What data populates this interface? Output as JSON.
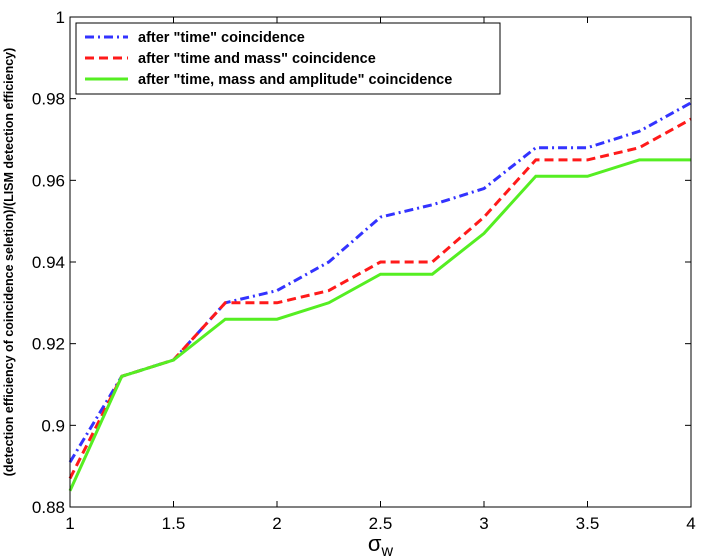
{
  "chart_data": {
    "type": "line",
    "title": "",
    "xlabel": "σ",
    "xlabel_subscript": "w",
    "ylabel": "(detection efficiency of coincidence seletion)/(LISM detection efficiency)",
    "xlim": [
      1,
      4
    ],
    "ylim": [
      0.88,
      1.0
    ],
    "xticks": [
      1,
      1.5,
      2,
      2.5,
      3,
      3.5,
      4
    ],
    "xtick_labels": [
      "1",
      "1.5",
      "2",
      "2.5",
      "3",
      "3.5",
      "4"
    ],
    "yticks": [
      0.88,
      0.9,
      0.92,
      0.94,
      0.96,
      0.98,
      1.0
    ],
    "ytick_labels": [
      "0.88",
      "0.9",
      "0.92",
      "0.94",
      "0.96",
      "0.98",
      "1"
    ],
    "grid": false,
    "legend_position": "top-left",
    "x": [
      1,
      1.25,
      1.5,
      1.75,
      2,
      2.25,
      2.5,
      2.75,
      3,
      3.25,
      3.5,
      3.75,
      4
    ],
    "series": [
      {
        "name": "after \"time\" coincidence",
        "color": "#3333ff",
        "dash": "dash-dot",
        "values": [
          0.891,
          0.912,
          0.916,
          0.93,
          0.933,
          0.94,
          0.951,
          0.954,
          0.958,
          0.968,
          0.968,
          0.972,
          0.979
        ]
      },
      {
        "name": "after \"time and mass\" coincidence",
        "color": "#ff1a1a",
        "dash": "dashed",
        "values": [
          0.887,
          0.912,
          0.916,
          0.93,
          0.93,
          0.933,
          0.94,
          0.94,
          0.951,
          0.965,
          0.965,
          0.968,
          0.975
        ]
      },
      {
        "name": "after \"time, mass and amplitude\" coincidence",
        "color": "#55ee22",
        "dash": "solid",
        "values": [
          0.884,
          0.912,
          0.916,
          0.926,
          0.926,
          0.93,
          0.937,
          0.937,
          0.947,
          0.961,
          0.961,
          0.965,
          0.965
        ]
      }
    ]
  }
}
